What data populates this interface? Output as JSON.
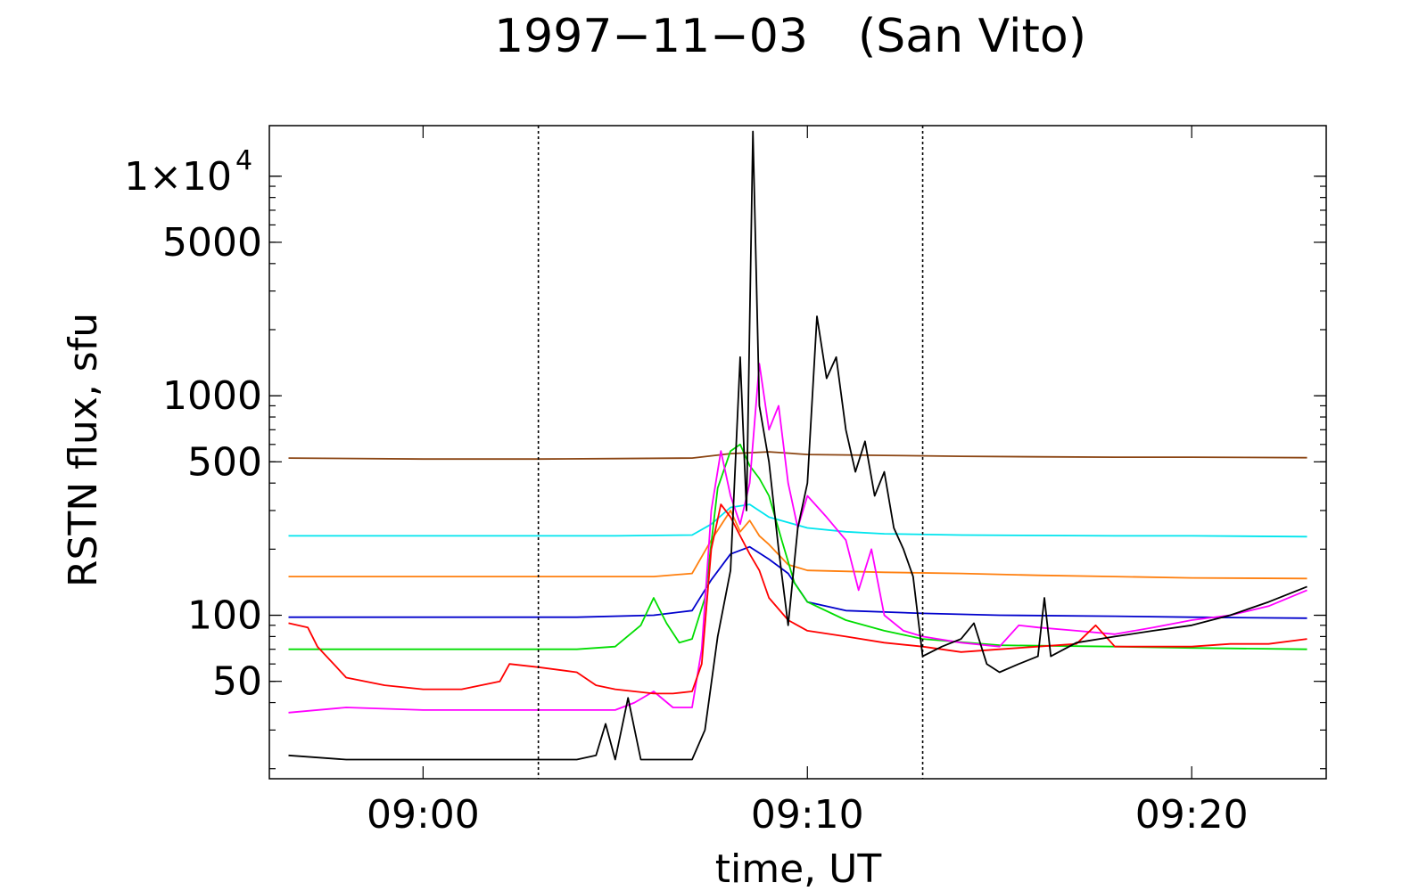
{
  "chart_data": {
    "type": "line",
    "title": "1997−11−03",
    "subtitle": "(San Vito)",
    "xlabel": "time,  UT",
    "ylabel": "RSTN flux,  sfu",
    "yscale": "log",
    "xlim": [
      "08:56",
      "09:23:30"
    ],
    "ylim": [
      18,
      17000
    ],
    "grid": false,
    "x_ticks": [
      {
        "label": "09:00",
        "t": "09:00"
      },
      {
        "label": "09:10",
        "t": "09:10"
      },
      {
        "label": "09:20",
        "t": "09:20"
      }
    ],
    "y_ticks": [
      {
        "label": "50",
        "value": 50
      },
      {
        "label": "100",
        "value": 100
      },
      {
        "label": "500",
        "value": 500
      },
      {
        "label": "1000",
        "value": 1000
      },
      {
        "label": "5000",
        "value": 5000
      },
      {
        "label": "1×10",
        "sup": "4",
        "value": 10000
      }
    ],
    "vertical_markers": [
      "09:03",
      "09:13"
    ],
    "series": [
      {
        "color": "#8B4513",
        "points": [
          [
            "08:56:30",
            520
          ],
          [
            "09:00",
            515
          ],
          [
            "09:03",
            515
          ],
          [
            "09:05",
            517
          ],
          [
            "09:07",
            520
          ],
          [
            "09:08",
            545
          ],
          [
            "09:09",
            555
          ],
          [
            "09:10",
            540
          ],
          [
            "09:12",
            535
          ],
          [
            "09:14",
            530
          ],
          [
            "09:16",
            527
          ],
          [
            "09:18",
            525
          ],
          [
            "09:20",
            525
          ],
          [
            "09:23",
            522
          ]
        ]
      },
      {
        "color": "#00E5EE",
        "points": [
          [
            "08:56:30",
            230
          ],
          [
            "09:00",
            230
          ],
          [
            "09:03",
            230
          ],
          [
            "09:05",
            230
          ],
          [
            "09:07",
            232
          ],
          [
            "09:07:30",
            260
          ],
          [
            "09:08",
            310
          ],
          [
            "09:08:30",
            320
          ],
          [
            "09:09",
            280
          ],
          [
            "09:10",
            250
          ],
          [
            "09:11",
            240
          ],
          [
            "09:12",
            235
          ],
          [
            "09:14",
            232
          ],
          [
            "09:18",
            230
          ],
          [
            "09:20",
            230
          ],
          [
            "09:23",
            228
          ]
        ]
      },
      {
        "color": "#FF7F0E",
        "points": [
          [
            "08:56:30",
            150
          ],
          [
            "09:00",
            150
          ],
          [
            "09:04",
            150
          ],
          [
            "09:06",
            150
          ],
          [
            "09:07",
            155
          ],
          [
            "09:07:30",
            220
          ],
          [
            "09:08",
            300
          ],
          [
            "09:08:15",
            240
          ],
          [
            "09:08:30",
            270
          ],
          [
            "09:08:45",
            230
          ],
          [
            "09:09",
            210
          ],
          [
            "09:09:30",
            170
          ],
          [
            "09:10",
            160
          ],
          [
            "09:12",
            157
          ],
          [
            "09:14",
            155
          ],
          [
            "09:16",
            152
          ],
          [
            "09:18",
            150
          ],
          [
            "09:20",
            148
          ],
          [
            "09:23",
            147
          ]
        ]
      },
      {
        "color": "#0000CC",
        "points": [
          [
            "08:56:30",
            98
          ],
          [
            "09:00",
            98
          ],
          [
            "09:04",
            98
          ],
          [
            "09:06",
            100
          ],
          [
            "09:07",
            105
          ],
          [
            "09:07:30",
            145
          ],
          [
            "09:08",
            190
          ],
          [
            "09:08:30",
            205
          ],
          [
            "09:09",
            180
          ],
          [
            "09:09:30",
            155
          ],
          [
            "09:10",
            115
          ],
          [
            "09:11",
            105
          ],
          [
            "09:13",
            102
          ],
          [
            "09:15",
            100
          ],
          [
            "09:18",
            99
          ],
          [
            "09:20",
            98
          ],
          [
            "09:23",
            97
          ]
        ]
      },
      {
        "color": "#00DD00",
        "points": [
          [
            "08:56:30",
            70
          ],
          [
            "09:00",
            70
          ],
          [
            "09:04",
            70
          ],
          [
            "09:05",
            72
          ],
          [
            "09:05:40",
            90
          ],
          [
            "09:06",
            120
          ],
          [
            "09:06:20",
            92
          ],
          [
            "09:06:40",
            75
          ],
          [
            "09:07",
            78
          ],
          [
            "09:07:20",
            120
          ],
          [
            "09:07:40",
            380
          ],
          [
            "09:08",
            560
          ],
          [
            "09:08:15",
            600
          ],
          [
            "09:08:30",
            480
          ],
          [
            "09:08:45",
            420
          ],
          [
            "09:09",
            350
          ],
          [
            "09:09:20",
            220
          ],
          [
            "09:09:40",
            140
          ],
          [
            "09:10",
            115
          ],
          [
            "09:11",
            95
          ],
          [
            "09:12",
            85
          ],
          [
            "09:13",
            78
          ],
          [
            "09:15",
            73
          ],
          [
            "09:18",
            72
          ],
          [
            "09:20",
            71
          ],
          [
            "09:23",
            70
          ]
        ]
      },
      {
        "color": "#FF00FF",
        "points": [
          [
            "08:56:30",
            36
          ],
          [
            "08:58",
            38
          ],
          [
            "09:00",
            37
          ],
          [
            "09:03",
            37
          ],
          [
            "09:05",
            37
          ],
          [
            "09:05:30",
            40
          ],
          [
            "09:06",
            45
          ],
          [
            "09:06:30",
            38
          ],
          [
            "09:07",
            38
          ],
          [
            "09:07:15",
            70
          ],
          [
            "09:07:30",
            300
          ],
          [
            "09:07:45",
            560
          ],
          [
            "09:08",
            350
          ],
          [
            "09:08:15",
            260
          ],
          [
            "09:08:30",
            400
          ],
          [
            "09:08:45",
            1400
          ],
          [
            "09:09",
            700
          ],
          [
            "09:09:15",
            900
          ],
          [
            "09:09:30",
            400
          ],
          [
            "09:09:45",
            250
          ],
          [
            "09:10",
            350
          ],
          [
            "09:10:30",
            280
          ],
          [
            "09:11",
            220
          ],
          [
            "09:11:20",
            130
          ],
          [
            "09:11:40",
            200
          ],
          [
            "09:12",
            100
          ],
          [
            "09:12:30",
            85
          ],
          [
            "09:13",
            80
          ],
          [
            "09:14",
            75
          ],
          [
            "09:15",
            72
          ],
          [
            "09:15:30",
            90
          ],
          [
            "09:16",
            88
          ],
          [
            "09:17",
            85
          ],
          [
            "09:18",
            82
          ],
          [
            "09:19",
            88
          ],
          [
            "09:20",
            95
          ],
          [
            "09:21",
            100
          ],
          [
            "09:22",
            110
          ],
          [
            "09:23",
            130
          ]
        ]
      },
      {
        "color": "#FF0000",
        "points": [
          [
            "08:56:30",
            92
          ],
          [
            "08:57",
            88
          ],
          [
            "08:57:15",
            72
          ],
          [
            "08:57:45",
            58
          ],
          [
            "08:58",
            52
          ],
          [
            "08:59",
            48
          ],
          [
            "09:00",
            46
          ],
          [
            "09:01",
            46
          ],
          [
            "09:02",
            50
          ],
          [
            "09:02:15",
            60
          ],
          [
            "09:03",
            58
          ],
          [
            "09:04",
            55
          ],
          [
            "09:04:30",
            48
          ],
          [
            "09:05",
            46
          ],
          [
            "09:06",
            44
          ],
          [
            "09:06:30",
            44
          ],
          [
            "09:07",
            45
          ],
          [
            "09:07:15",
            60
          ],
          [
            "09:07:30",
            200
          ],
          [
            "09:07:45",
            320
          ],
          [
            "09:08",
            280
          ],
          [
            "09:08:15",
            230
          ],
          [
            "09:08:30",
            190
          ],
          [
            "09:08:45",
            160
          ],
          [
            "09:09",
            120
          ],
          [
            "09:09:30",
            95
          ],
          [
            "09:10",
            85
          ],
          [
            "09:11",
            80
          ],
          [
            "09:12",
            75
          ],
          [
            "09:13",
            72
          ],
          [
            "09:14",
            68
          ],
          [
            "09:15",
            70
          ],
          [
            "09:16",
            72
          ],
          [
            "09:17",
            74
          ],
          [
            "09:17:30",
            90
          ],
          [
            "09:18",
            72
          ],
          [
            "09:20",
            72
          ],
          [
            "09:21",
            74
          ],
          [
            "09:22",
            74
          ],
          [
            "09:23",
            78
          ]
        ]
      },
      {
        "color": "#000000",
        "points": [
          [
            "08:56:30",
            23
          ],
          [
            "08:58",
            22
          ],
          [
            "09:00",
            22
          ],
          [
            "09:02",
            22
          ],
          [
            "09:04",
            22
          ],
          [
            "09:04:30",
            23
          ],
          [
            "09:04:45",
            32
          ],
          [
            "09:05",
            22
          ],
          [
            "09:05:20",
            42
          ],
          [
            "09:05:40",
            22
          ],
          [
            "09:06",
            22
          ],
          [
            "09:07",
            22
          ],
          [
            "09:07:20",
            30
          ],
          [
            "09:07:40",
            80
          ],
          [
            "09:08",
            160
          ],
          [
            "09:08:15",
            1500
          ],
          [
            "09:08:25",
            300
          ],
          [
            "09:08:35",
            16000
          ],
          [
            "09:08:45",
            900
          ],
          [
            "09:09",
            500
          ],
          [
            "09:09:15",
            200
          ],
          [
            "09:09:30",
            90
          ],
          [
            "09:09:45",
            250
          ],
          [
            "09:10",
            400
          ],
          [
            "09:10:15",
            2300
          ],
          [
            "09:10:30",
            1200
          ],
          [
            "09:10:45",
            1500
          ],
          [
            "09:11",
            700
          ],
          [
            "09:11:15",
            450
          ],
          [
            "09:11:30",
            620
          ],
          [
            "09:11:45",
            350
          ],
          [
            "09:12",
            450
          ],
          [
            "09:12:15",
            250
          ],
          [
            "09:12:30",
            200
          ],
          [
            "09:12:45",
            150
          ],
          [
            "09:13",
            65
          ],
          [
            "09:13:30",
            72
          ],
          [
            "09:14",
            78
          ],
          [
            "09:14:20",
            92
          ],
          [
            "09:14:40",
            60
          ],
          [
            "09:15",
            55
          ],
          [
            "09:15:30",
            60
          ],
          [
            "09:16",
            65
          ],
          [
            "09:16:10",
            120
          ],
          [
            "09:16:20",
            65
          ],
          [
            "09:17",
            75
          ],
          [
            "09:18",
            80
          ],
          [
            "09:19",
            85
          ],
          [
            "09:20",
            90
          ],
          [
            "09:21",
            100
          ],
          [
            "09:22",
            115
          ],
          [
            "09:23",
            135
          ]
        ]
      }
    ]
  }
}
